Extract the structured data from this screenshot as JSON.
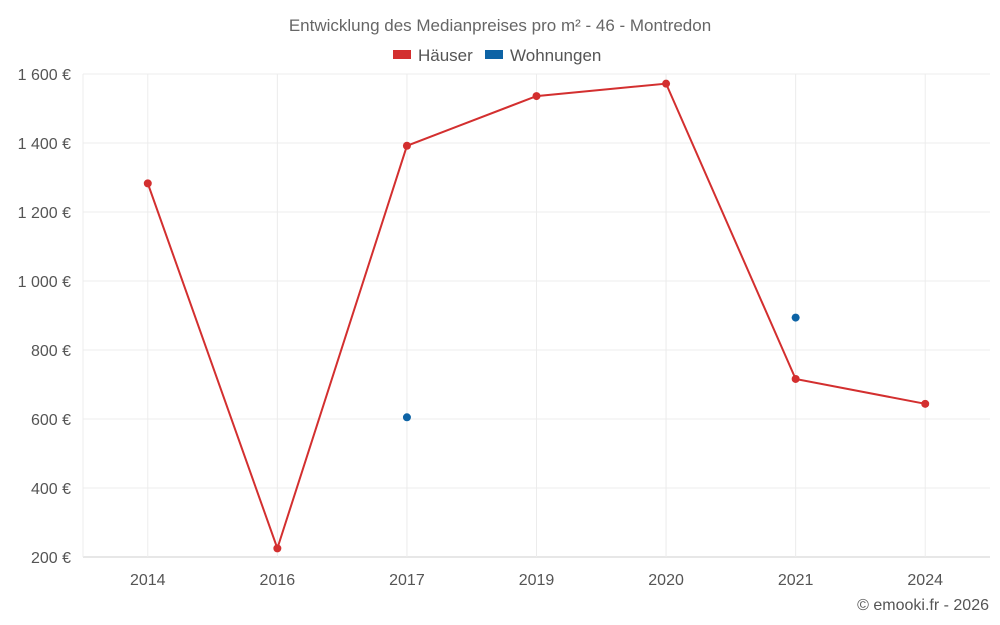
{
  "chart_data": {
    "type": "line",
    "title": "Entwicklung des Medianpreises pro m² - 46 - Montredon",
    "categories": [
      "2014",
      "2016",
      "2017",
      "2019",
      "2020",
      "2021",
      "2024"
    ],
    "ylim": [
      200,
      1600
    ],
    "yticks": [
      200,
      400,
      600,
      800,
      1000,
      1200,
      1400,
      1600
    ],
    "ytick_labels": [
      "200 €",
      "400 €",
      "600 €",
      "800 €",
      "1 000 €",
      "1 200 €",
      "1 400 €",
      "1 600 €"
    ],
    "grid": true,
    "legend_position": "top-center",
    "series": [
      {
        "name": "Häuser",
        "color": "#d32f2f",
        "values": [
          1283,
          225,
          1392,
          1536,
          1572,
          716,
          644
        ]
      },
      {
        "name": "Wohnungen",
        "color": "#0d63a5",
        "values": [
          null,
          null,
          605,
          null,
          null,
          894,
          null
        ]
      }
    ]
  },
  "credit": "© emooki.fr - 2026"
}
